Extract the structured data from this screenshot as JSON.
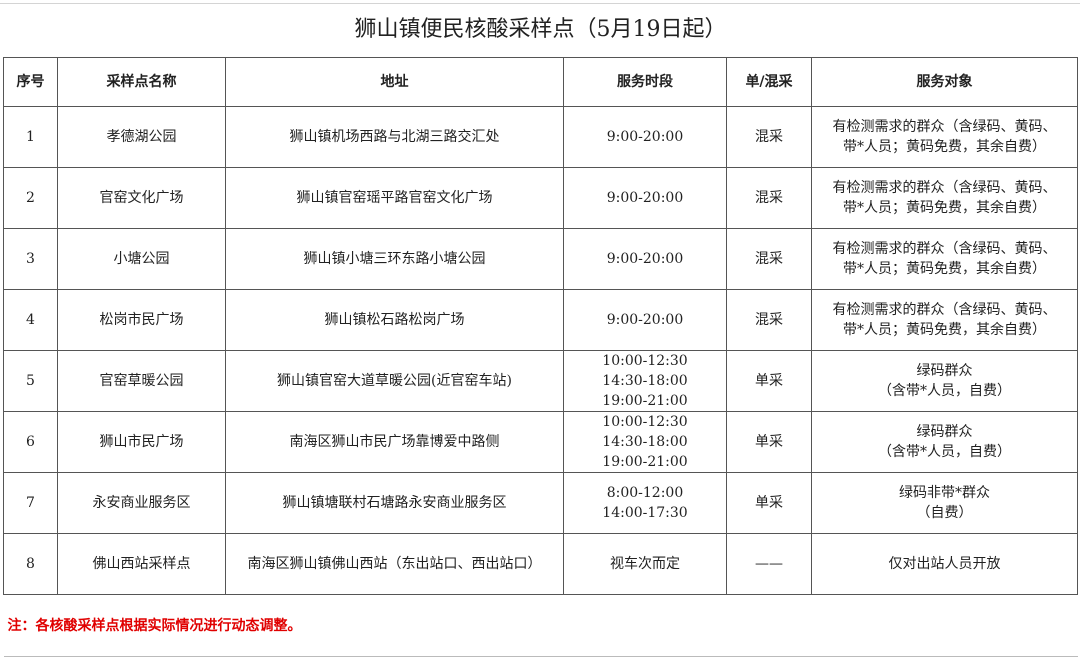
{
  "title": "狮山镇便民核酸采样点（5月19日起）",
  "headers": [
    "序号",
    "采样点名称",
    "地址",
    "服务时段",
    "单/混采",
    "服务对象"
  ],
  "rows": [
    {
      "no": "1",
      "name": "孝德湖公园",
      "address": "狮山镇机场西路与北湖三路交汇处",
      "hours": [
        "9:00-20:00"
      ],
      "mode": "混采",
      "target": [
        "有检测需求的群众（含绿码、黄码、",
        "带*人员；黄码免费，其余自费）"
      ]
    },
    {
      "no": "2",
      "name": "官窑文化广场",
      "address": "狮山镇官窑瑶平路官窑文化广场",
      "hours": [
        "9:00-20:00"
      ],
      "mode": "混采",
      "target": [
        "有检测需求的群众（含绿码、黄码、",
        "带*人员；黄码免费，其余自费）"
      ]
    },
    {
      "no": "3",
      "name": "小塘公园",
      "address": "狮山镇小塘三环东路小塘公园",
      "hours": [
        "9:00-20:00"
      ],
      "mode": "混采",
      "target": [
        "有检测需求的群众（含绿码、黄码、",
        "带*人员；黄码免费，其余自费）"
      ]
    },
    {
      "no": "4",
      "name": "松岗市民广场",
      "address": "狮山镇松石路松岗广场",
      "hours": [
        "9:00-20:00"
      ],
      "mode": "混采",
      "target": [
        "有检测需求的群众（含绿码、黄码、",
        "带*人员；黄码免费，其余自费）"
      ]
    },
    {
      "no": "5",
      "name": "官窑草暖公园",
      "address": "狮山镇官窑大道草暖公园(近官窑车站)",
      "hours": [
        "10:00-12:30",
        "14:30-18:00",
        "19:00-21:00"
      ],
      "mode": "单采",
      "target": [
        "绿码群众",
        "（含带*人员，自费）"
      ]
    },
    {
      "no": "6",
      "name": "狮山市民广场",
      "address": "南海区狮山市民广场靠博爱中路侧",
      "hours": [
        "10:00-12:30",
        "14:30-18:00",
        "19:00-21:00"
      ],
      "mode": "单采",
      "target": [
        "绿码群众",
        "（含带*人员，自费）"
      ]
    },
    {
      "no": "7",
      "name": "永安商业服务区",
      "address": "狮山镇塘联村石塘路永安商业服务区",
      "hours": [
        "8:00-12:00",
        "14:00-17:30"
      ],
      "mode": "单采",
      "target": [
        "绿码非带*群众",
        "（自费）"
      ]
    },
    {
      "no": "8",
      "name": "佛山西站采样点",
      "address": "南海区狮山镇佛山西站（东出站口、西出站口）",
      "hours": [
        "视车次而定"
      ],
      "mode": "——",
      "target": [
        "仅对出站人员开放"
      ]
    }
  ],
  "note": "注：各核酸采样点根据实际情况进行动态调整。"
}
